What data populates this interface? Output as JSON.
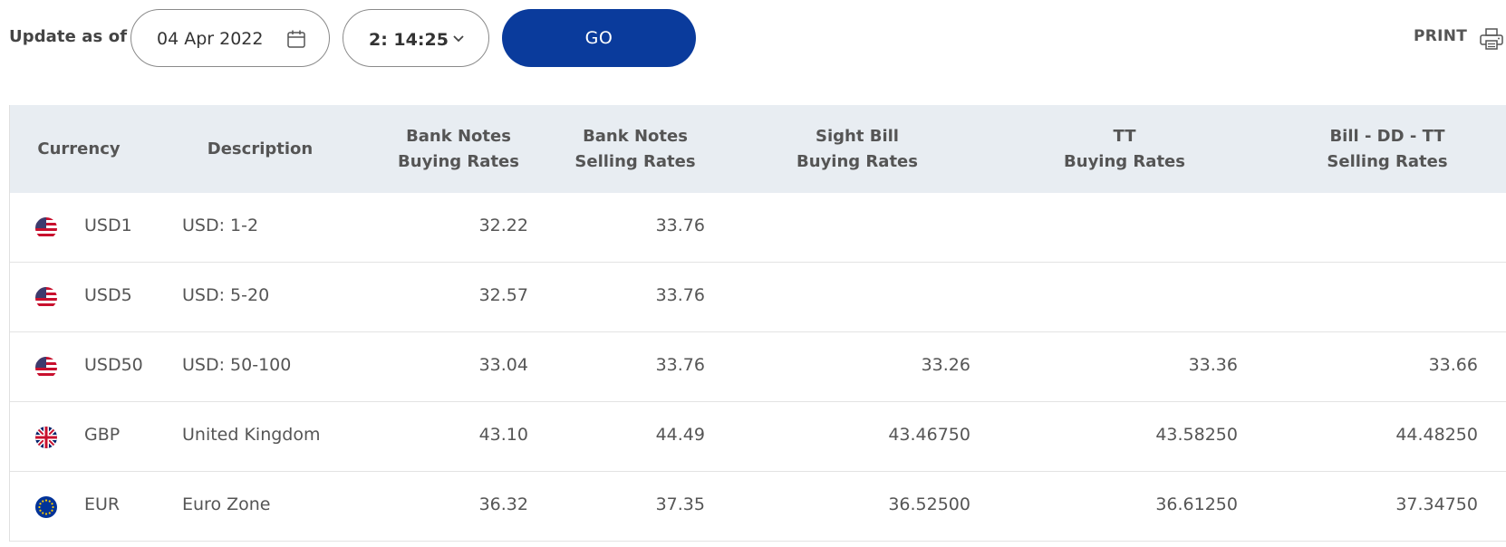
{
  "toolbar": {
    "update_label": "Update as of",
    "date_value": "04 Apr 2022",
    "time_value": "2: 14:25",
    "go_label": "GO",
    "print_label": "PRINT"
  },
  "colors": {
    "primary_button": "#0a3b9c",
    "header_bg": "#e8edf2"
  },
  "icons": {
    "date": "calendar-icon",
    "time": "chevron-down-icon",
    "print": "printer-icon"
  },
  "table": {
    "headers": {
      "currency": "Currency",
      "description": "Description",
      "bank_notes_buying": "Bank Notes\nBuying Rates",
      "bank_notes_selling": "Bank Notes\nSelling Rates",
      "sight_bill_buying": "Sight Bill\nBuying Rates",
      "tt_buying": "TT\nBuying Rates",
      "bill_dd_tt_selling": "Bill - DD - TT\nSelling Rates"
    },
    "rows": [
      {
        "flag": "us-flag",
        "code": "USD1",
        "description": "USD: 1-2",
        "bn_buy": "32.22",
        "bn_sell": "33.76",
        "sight_buy": "",
        "tt_buy": "",
        "bill_sell": ""
      },
      {
        "flag": "us-flag",
        "code": "USD5",
        "description": "USD: 5-20",
        "bn_buy": "32.57",
        "bn_sell": "33.76",
        "sight_buy": "",
        "tt_buy": "",
        "bill_sell": ""
      },
      {
        "flag": "us-flag",
        "code": "USD50",
        "description": "USD: 50-100",
        "bn_buy": "33.04",
        "bn_sell": "33.76",
        "sight_buy": "33.26",
        "tt_buy": "33.36",
        "bill_sell": "33.66"
      },
      {
        "flag": "uk-flag",
        "code": "GBP",
        "description": "United Kingdom",
        "bn_buy": "43.10",
        "bn_sell": "44.49",
        "sight_buy": "43.46750",
        "tt_buy": "43.58250",
        "bill_sell": "44.48250"
      },
      {
        "flag": "eu-flag",
        "code": "EUR",
        "description": "Euro Zone",
        "bn_buy": "36.32",
        "bn_sell": "37.35",
        "sight_buy": "36.52500",
        "tt_buy": "36.61250",
        "bill_sell": "37.34750"
      }
    ]
  }
}
